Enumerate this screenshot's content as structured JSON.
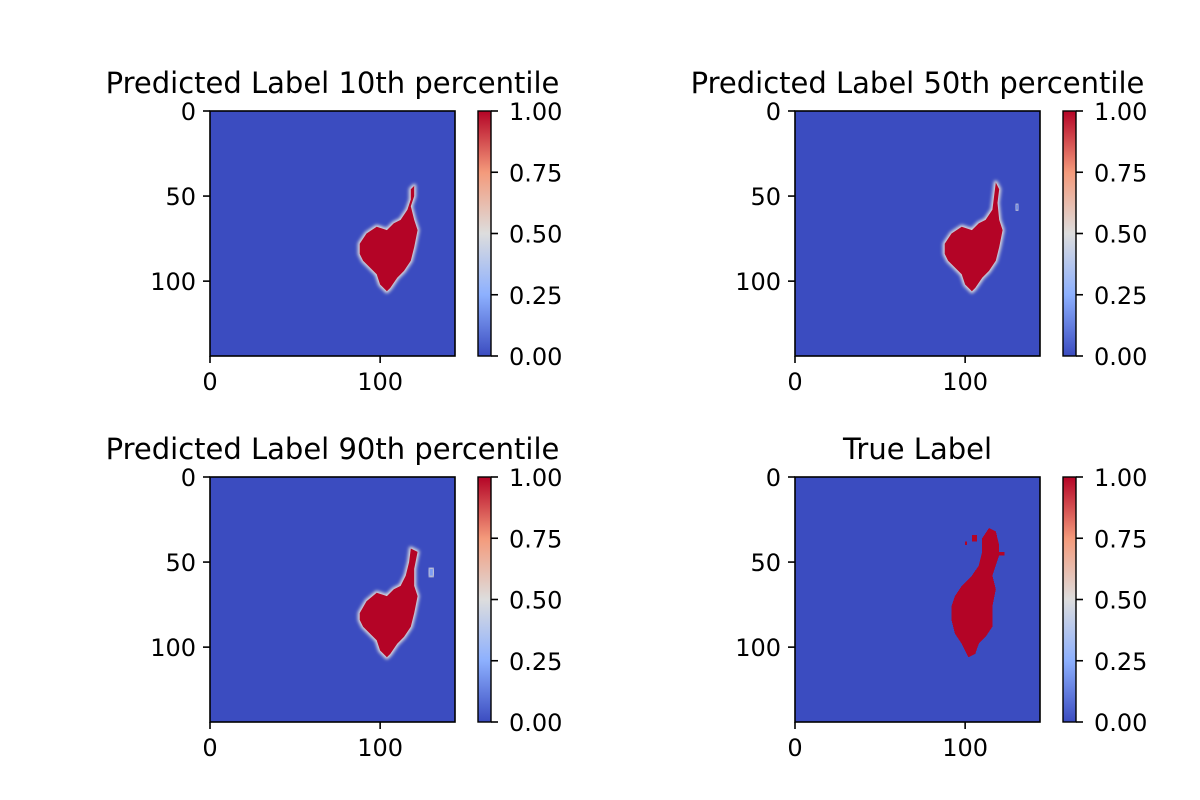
{
  "chart_data": [
    {
      "type": "heatmap",
      "title": "Predicted Label 10th percentile",
      "x_ticks": [
        "0",
        "100"
      ],
      "y_ticks": [
        "0",
        "50",
        "100"
      ],
      "xlim": [
        0,
        144
      ],
      "ylim": [
        144,
        0
      ],
      "colorbar": {
        "cmap": "coolwarm",
        "range": [
          0,
          1
        ],
        "ticks": [
          "0.00",
          "0.25",
          "0.50",
          "0.75",
          "1.00"
        ]
      },
      "rendering": "smooth",
      "regions": [
        {
          "value": 1.0,
          "polygon": [
            [
              88,
              78
            ],
            [
              92,
              72
            ],
            [
              98,
              68
            ],
            [
              104,
              70
            ],
            [
              108,
              66
            ],
            [
              112,
              64
            ],
            [
              116,
              58
            ],
            [
              118,
              52
            ],
            [
              118,
              46
            ],
            [
              120,
              44
            ],
            [
              120,
              50
            ],
            [
              118,
              56
            ],
            [
              120,
              64
            ],
            [
              122,
              70
            ],
            [
              120,
              80
            ],
            [
              118,
              88
            ],
            [
              114,
              94
            ],
            [
              110,
              98
            ],
            [
              106,
              104
            ],
            [
              104,
              106
            ],
            [
              100,
              102
            ],
            [
              98,
              96
            ],
            [
              94,
              92
            ],
            [
              90,
              88
            ],
            [
              88,
              84
            ]
          ]
        }
      ]
    },
    {
      "type": "heatmap",
      "title": "Predicted Label 50th percentile",
      "x_ticks": [
        "0",
        "100"
      ],
      "y_ticks": [
        "0",
        "50",
        "100"
      ],
      "xlim": [
        0,
        144
      ],
      "ylim": [
        144,
        0
      ],
      "colorbar": {
        "cmap": "coolwarm",
        "range": [
          0,
          1
        ],
        "ticks": [
          "0.00",
          "0.25",
          "0.50",
          "0.75",
          "1.00"
        ]
      },
      "rendering": "smooth",
      "regions": [
        {
          "value": 1.0,
          "polygon": [
            [
              88,
              78
            ],
            [
              92,
              72
            ],
            [
              98,
              68
            ],
            [
              104,
              70
            ],
            [
              108,
              66
            ],
            [
              112,
              64
            ],
            [
              116,
              58
            ],
            [
              117,
              50
            ],
            [
              118,
              42
            ],
            [
              120,
              46
            ],
            [
              119,
              54
            ],
            [
              120,
              64
            ],
            [
              122,
              70
            ],
            [
              120,
              80
            ],
            [
              118,
              88
            ],
            [
              114,
              94
            ],
            [
              110,
              98
            ],
            [
              106,
              104
            ],
            [
              104,
              106
            ],
            [
              100,
              102
            ],
            [
              98,
              96
            ],
            [
              94,
              92
            ],
            [
              90,
              88
            ],
            [
              88,
              84
            ]
          ]
        },
        {
          "value": 0.15,
          "polygon": [
            [
              130,
              55
            ],
            [
              131,
              55
            ],
            [
              131,
              58
            ],
            [
              130,
              58
            ]
          ]
        }
      ]
    },
    {
      "type": "heatmap",
      "title": "Predicted Label 90th percentile",
      "x_ticks": [
        "0",
        "100"
      ],
      "y_ticks": [
        "0",
        "50",
        "100"
      ],
      "xlim": [
        0,
        144
      ],
      "ylim": [
        144,
        0
      ],
      "colorbar": {
        "cmap": "coolwarm",
        "range": [
          0,
          1
        ],
        "ticks": [
          "0.00",
          "0.25",
          "0.50",
          "0.75",
          "1.00"
        ]
      },
      "rendering": "smooth",
      "regions": [
        {
          "value": 1.0,
          "polygon": [
            [
              88,
              80
            ],
            [
              92,
              73
            ],
            [
              98,
              68
            ],
            [
              104,
              70
            ],
            [
              108,
              66
            ],
            [
              112,
              64
            ],
            [
              115,
              58
            ],
            [
              117,
              50
            ],
            [
              118,
              42
            ],
            [
              122,
              44
            ],
            [
              120,
              54
            ],
            [
              120,
              64
            ],
            [
              122,
              70
            ],
            [
              120,
              80
            ],
            [
              118,
              88
            ],
            [
              114,
              94
            ],
            [
              110,
              98
            ],
            [
              106,
              104
            ],
            [
              104,
              106
            ],
            [
              100,
              102
            ],
            [
              98,
              96
            ],
            [
              94,
              92
            ],
            [
              90,
              88
            ],
            [
              88,
              84
            ]
          ]
        },
        {
          "value": 0.2,
          "polygon": [
            [
              129,
              54
            ],
            [
              131,
              54
            ],
            [
              131,
              58
            ],
            [
              129,
              58
            ]
          ]
        }
      ]
    },
    {
      "type": "heatmap",
      "title": "True Label",
      "x_ticks": [
        "0",
        "100"
      ],
      "y_ticks": [
        "0",
        "50",
        "100"
      ],
      "xlim": [
        0,
        144
      ],
      "ylim": [
        144,
        0
      ],
      "colorbar": {
        "cmap": "coolwarm",
        "range": [
          0,
          1
        ],
        "ticks": [
          "0.00",
          "0.25",
          "0.50",
          "0.75",
          "1.00"
        ]
      },
      "rendering": "crisp",
      "regions": [
        {
          "value": 1.0,
          "polygon": [
            [
              110,
              36
            ],
            [
              114,
              30
            ],
            [
              118,
              32
            ],
            [
              120,
              40
            ],
            [
              120,
              46
            ],
            [
              118,
              52
            ],
            [
              116,
              58
            ],
            [
              118,
              66
            ],
            [
              116,
              76
            ],
            [
              116,
              88
            ],
            [
              112,
              94
            ],
            [
              108,
              98
            ],
            [
              106,
              104
            ],
            [
              102,
              106
            ],
            [
              98,
              98
            ],
            [
              94,
              92
            ],
            [
              92,
              84
            ],
            [
              92,
              76
            ],
            [
              94,
              70
            ],
            [
              98,
              64
            ],
            [
              104,
              58
            ],
            [
              108,
              52
            ],
            [
              110,
              44
            ]
          ]
        },
        {
          "value": 1.0,
          "polygon": [
            [
              104,
              34
            ],
            [
              107,
              34
            ],
            [
              107,
              38
            ],
            [
              104,
              38
            ]
          ]
        },
        {
          "value": 1.0,
          "polygon": [
            [
              120,
              44
            ],
            [
              123,
              44
            ],
            [
              123,
              46
            ],
            [
              120,
              46
            ]
          ]
        },
        {
          "value": 1.0,
          "polygon": [
            [
              100,
              38
            ],
            [
              101,
              38
            ],
            [
              101,
              40
            ],
            [
              100,
              40
            ]
          ]
        }
      ]
    }
  ]
}
